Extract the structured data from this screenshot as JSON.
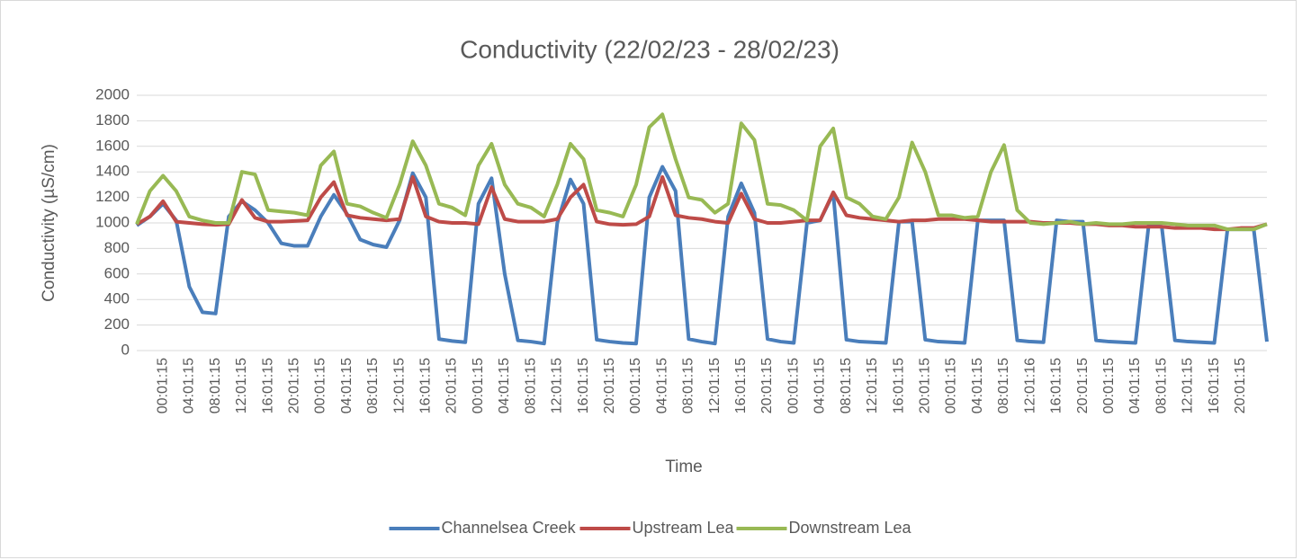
{
  "chart_data": {
    "type": "line",
    "title": "Conductivity (22/02/23 - 28/02/23)",
    "x_label": "Time",
    "y_label": "Conductivity (µS/cm)",
    "categories": [
      null,
      null,
      "00:01:15",
      null,
      "04:01:15",
      null,
      "08:01:15",
      null,
      "12:01:15",
      null,
      "16:01:15",
      null,
      "20:01:15",
      null,
      "00:01:15",
      null,
      "04:01:15",
      null,
      "08:01:15",
      null,
      "12:01:15",
      null,
      "16:01:15",
      null,
      "20:01:15",
      null,
      "00:01:15",
      null,
      "04:01:15",
      null,
      "08:01:15",
      null,
      "12:01:15",
      null,
      "16:01:15",
      null,
      "20:01:15",
      null,
      "00:01:15",
      null,
      "04:01:15",
      null,
      "08:01:15",
      null,
      "12:01:15",
      null,
      "16:01:15",
      null,
      "20:01:15",
      null,
      "00:01:15",
      null,
      "04:01:15",
      null,
      "08:01:15",
      null,
      "12:01:15",
      null,
      "16:01:15",
      null,
      "20:01:15",
      null,
      "00:01:15",
      null,
      "04:01:15",
      null,
      "08:01:15",
      null,
      "12:01:16",
      null,
      "16:01:15",
      null,
      "20:01:15",
      null,
      "00:01:15",
      null,
      "04:01:15",
      null,
      "08:01:15",
      null,
      "12:01:15",
      null,
      "16:01:15",
      null,
      "20:01:15",
      null,
      null
    ],
    "series": [
      {
        "name": "Channelsea Creek",
        "color": "#4a7ebb",
        "values": [
          980,
          1050,
          1150,
          1020,
          500,
          300,
          290,
          1050,
          1170,
          1100,
          1000,
          840,
          820,
          820,
          1050,
          1220,
          1070,
          870,
          830,
          810,
          1020,
          1390,
          1200,
          90,
          75,
          65,
          1150,
          1350,
          600,
          80,
          70,
          55,
          1000,
          1340,
          1150,
          85,
          70,
          60,
          55,
          1200,
          1440,
          1250,
          90,
          70,
          55,
          1050,
          1310,
          1080,
          90,
          70,
          60,
          1000,
          1020,
          1230,
          85,
          70,
          65,
          60,
          1010,
          1010,
          85,
          70,
          65,
          60,
          1020,
          1020,
          1020,
          80,
          70,
          65,
          1020,
          1010,
          1010,
          80,
          70,
          65,
          60,
          980,
          970,
          80,
          70,
          65,
          60,
          950,
          950,
          950,
          70
        ]
      },
      {
        "name": "Upstream Lea",
        "color": "#be4b48",
        "values": [
          990,
          1050,
          1170,
          1010,
          1000,
          990,
          985,
          990,
          1180,
          1040,
          1010,
          1010,
          1015,
          1020,
          1200,
          1320,
          1060,
          1040,
          1030,
          1020,
          1030,
          1360,
          1050,
          1010,
          1000,
          1000,
          990,
          1280,
          1030,
          1010,
          1010,
          1010,
          1030,
          1200,
          1300,
          1010,
          990,
          985,
          990,
          1050,
          1360,
          1060,
          1040,
          1030,
          1010,
          1000,
          1230,
          1030,
          1000,
          1000,
          1010,
          1020,
          1020,
          1240,
          1060,
          1040,
          1030,
          1020,
          1010,
          1020,
          1020,
          1030,
          1030,
          1030,
          1020,
          1010,
          1010,
          1010,
          1010,
          1000,
          1000,
          1000,
          990,
          990,
          980,
          980,
          970,
          970,
          970,
          960,
          960,
          960,
          950,
          950,
          960,
          960,
          990
        ]
      },
      {
        "name": "Downstream Lea",
        "color": "#98b954",
        "values": [
          990,
          1250,
          1370,
          1250,
          1050,
          1020,
          1000,
          1000,
          1400,
          1380,
          1100,
          1090,
          1080,
          1060,
          1450,
          1560,
          1150,
          1130,
          1080,
          1040,
          1300,
          1640,
          1450,
          1150,
          1120,
          1060,
          1450,
          1620,
          1300,
          1150,
          1120,
          1050,
          1300,
          1620,
          1500,
          1100,
          1080,
          1050,
          1300,
          1750,
          1850,
          1500,
          1200,
          1180,
          1080,
          1150,
          1780,
          1650,
          1150,
          1140,
          1100,
          1020,
          1600,
          1740,
          1200,
          1150,
          1050,
          1030,
          1200,
          1630,
          1400,
          1060,
          1060,
          1040,
          1050,
          1400,
          1610,
          1100,
          1000,
          990,
          1000,
          1010,
          990,
          1000,
          990,
          990,
          1000,
          1000,
          1000,
          990,
          980,
          980,
          980,
          950,
          950,
          950,
          990
        ]
      }
    ],
    "ylim": [
      0,
      2000
    ],
    "yticks": [
      0,
      200,
      400,
      600,
      800,
      1000,
      1200,
      1400,
      1600,
      1800,
      2000
    ],
    "grid": true,
    "legend": "bottom"
  }
}
